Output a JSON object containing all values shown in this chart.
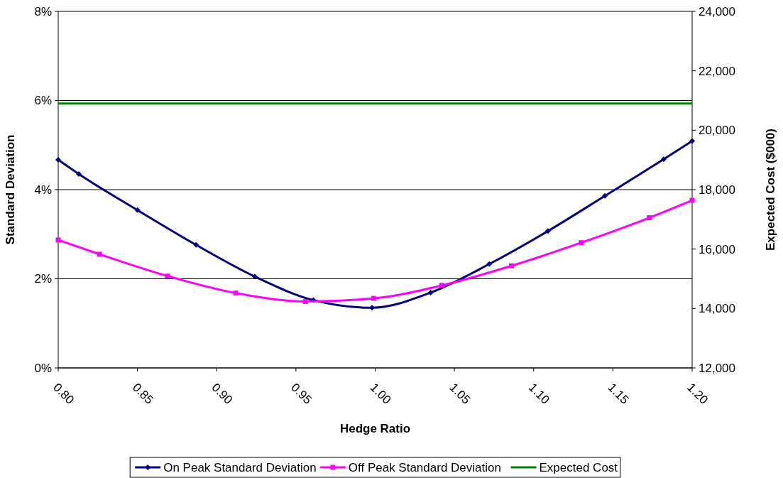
{
  "chart_data": {
    "type": "line",
    "xlabel": "Hedge Ratio",
    "ylabel": "Standard Deviation",
    "y2label": "Expected Cost ($000)",
    "xlim": [
      0.8,
      1.2
    ],
    "xticks": [
      {
        "value": 0.8,
        "label": "0.80"
      },
      {
        "value": 0.85,
        "label": "0.85"
      },
      {
        "value": 0.9,
        "label": "0.90"
      },
      {
        "value": 0.95,
        "label": "0.95"
      },
      {
        "value": 1.0,
        "label": "1.00"
      },
      {
        "value": 1.05,
        "label": "1.05"
      },
      {
        "value": 1.1,
        "label": "1.10"
      },
      {
        "value": 1.15,
        "label": "1.15"
      },
      {
        "value": 1.2,
        "label": "1.20"
      }
    ],
    "ylim": [
      0,
      8
    ],
    "yticks": [
      {
        "value": 0,
        "label": "0%"
      },
      {
        "value": 2,
        "label": "2%"
      },
      {
        "value": 4,
        "label": "4%"
      },
      {
        "value": 6,
        "label": "6%"
      },
      {
        "value": 8,
        "label": "8%"
      }
    ],
    "y2lim": [
      12000,
      24000
    ],
    "y2ticks": [
      {
        "value": 12000,
        "label": "12,000"
      },
      {
        "value": 14000,
        "label": "14,000"
      },
      {
        "value": 16000,
        "label": "16,000"
      },
      {
        "value": 18000,
        "label": "18,000"
      },
      {
        "value": 20000,
        "label": "20,000"
      },
      {
        "value": 22000,
        "label": "22,000"
      },
      {
        "value": 24000,
        "label": "24,000"
      }
    ],
    "grid": "y",
    "legend": "bottom",
    "line_style": "solid",
    "series": [
      {
        "name": "On Peak Standard Deviation",
        "color": "#000080",
        "marker": "diamond",
        "x": [
          0.8,
          0.813,
          0.85,
          0.887,
          0.924,
          0.961,
          0.998,
          1.035,
          1.072,
          1.109,
          1.145,
          1.182,
          1.2
        ],
        "values": [
          4.67,
          4.35,
          3.54,
          2.76,
          2.05,
          1.52,
          1.35,
          1.69,
          2.33,
          3.07,
          3.86,
          4.68,
          5.09
        ]
      },
      {
        "name": "Off Peak Standard Deviation",
        "color": "#ff00ff",
        "marker": "square",
        "x": [
          0.8,
          0.826,
          0.869,
          0.912,
          0.956,
          0.999,
          1.042,
          1.086,
          1.13,
          1.173,
          1.2
        ],
        "values": [
          2.87,
          2.55,
          2.06,
          1.68,
          1.49,
          1.56,
          1.85,
          2.29,
          2.81,
          3.37,
          3.76
        ]
      },
      {
        "name": "Expected Cost",
        "color": "#008000",
        "marker": "none",
        "axis": "y2",
        "x": [
          0.8,
          1.2
        ],
        "values": [
          20900,
          20900
        ]
      }
    ]
  }
}
